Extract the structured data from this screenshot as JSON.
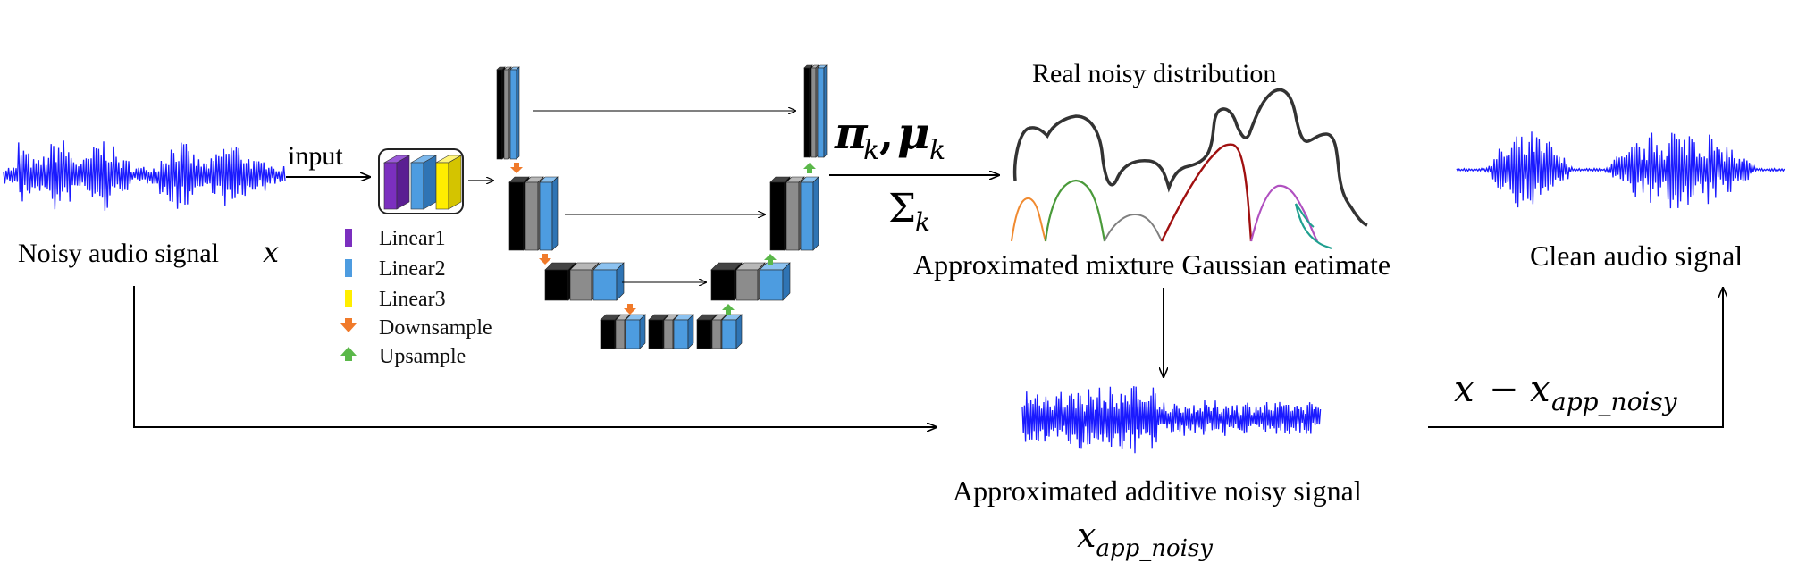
{
  "labels": {
    "input": "input",
    "noisy_signal": "Noisy audio signal",
    "noisy_signal_var": "x",
    "real_dist": "Real noisy distribution",
    "approx_mixture": "Approximated mixture Gaussian eatimate",
    "clean_signal": "Clean audio signal",
    "additive_noise": "Approximated additive noisy signal",
    "x_app_base": "x",
    "x_app_sub": "app_noisy",
    "minus_x": "x",
    "minus_sign": "−",
    "minus_sub": "app_noisy",
    "pi_mu_pi": "π",
    "pi_mu_mu": "μ",
    "k_sub": "k",
    "comma": ",",
    "sigma": "Σ"
  },
  "legend": [
    {
      "label": "Linear1",
      "color": "#7b2fbf",
      "icon": "bar-icon"
    },
    {
      "label": "Linear2",
      "color": "#4d9ce0",
      "icon": "bar-icon"
    },
    {
      "label": "Linear3",
      "color": "#ffee00",
      "icon": "bar-icon"
    },
    {
      "label": "Downsample",
      "color": "#f07a2a",
      "icon": "arrow-down-icon"
    },
    {
      "label": "Upsample",
      "color": "#5bb84a",
      "icon": "arrow-up-icon"
    }
  ],
  "colors": {
    "waveform": "#1a1aff",
    "arrow": "#000000",
    "linear1": "#7b2fbf",
    "linear2": "#4d9ce0",
    "linear3": "#ffee00",
    "downsample": "#f07a2a",
    "upsample": "#5bb84a",
    "gauss": [
      "#f08a30",
      "#4a9a3a",
      "#808080",
      "#a01010",
      "#b050c0",
      "#20a090"
    ]
  }
}
